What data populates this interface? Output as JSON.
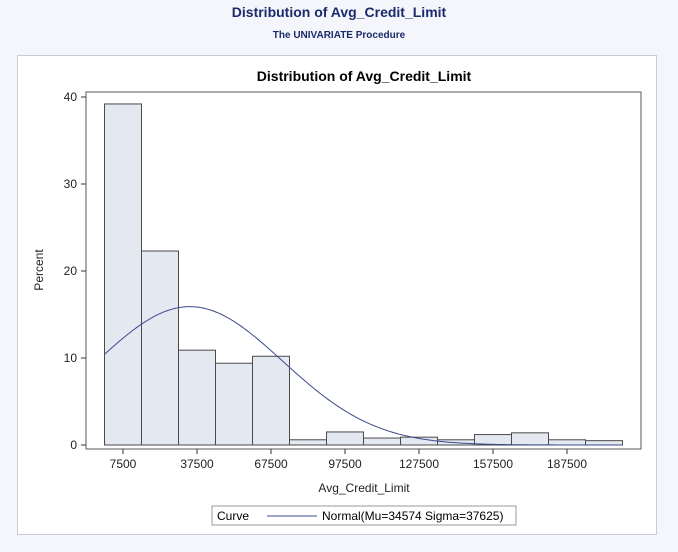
{
  "header": {
    "title": "Distribution of Avg_Credit_Limit",
    "subtitle": "The UNIVARIATE Procedure"
  },
  "colors": {
    "bar_fill": "#e3e8f1",
    "bar_stroke": "#4a4a4a",
    "curve": "#3b4a8c",
    "title": "#1a2a6b"
  },
  "chart_data": {
    "type": "bar",
    "title": "Distribution of Avg_Credit_Limit",
    "xlabel": "Avg_Credit_Limit",
    "ylabel": "Percent",
    "ylim": [
      0,
      40
    ],
    "xlim": [
      -7500,
      217500
    ],
    "y_ticks": [
      0,
      10,
      20,
      30,
      40
    ],
    "x_ticks": [
      7500,
      37500,
      67500,
      97500,
      127500,
      157500,
      187500
    ],
    "bin_width": 15000,
    "bin_midpoints": [
      7500,
      22500,
      37500,
      52500,
      67500,
      82500,
      97500,
      112500,
      127500,
      142500,
      157500,
      172500,
      187500,
      202500
    ],
    "values": [
      39.2,
      22.3,
      10.9,
      9.4,
      10.2,
      0.6,
      1.5,
      0.8,
      0.9,
      0.6,
      1.2,
      1.4,
      0.6,
      0.5
    ],
    "curve": {
      "type": "normal",
      "mu": 34574,
      "sigma": 37625
    },
    "legend": {
      "header": "Curve",
      "entries": [
        "Normal(Mu=34574 Sigma=37625)"
      ],
      "placement": "bottom"
    },
    "grid": false
  }
}
